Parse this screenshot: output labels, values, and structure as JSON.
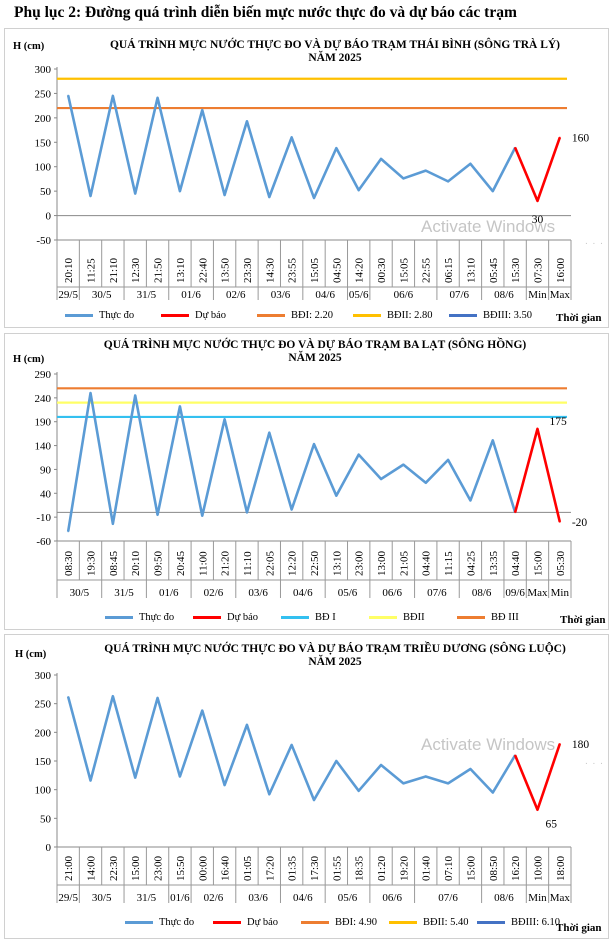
{
  "page_title": "Phụ lục 2: Đường quá trình diễn biến mực nước thực đo và dự báo các trạm",
  "watermark": "Activate Windows",
  "chart_data": [
    {
      "type": "line",
      "title_line1": "QUÁ TRÌNH MỰC NƯỚC THỰC ĐO VÀ DỰ BÁO TRẠM THÁI BÌNH (SÔNG TRÀ LÝ)",
      "title_line2": "NĂM 2025",
      "ylabel": "H (cm)",
      "xlabel": "Thời gian",
      "ylim": [
        -50,
        300
      ],
      "yticks": [
        -50,
        0,
        50,
        100,
        150,
        200,
        250,
        300
      ],
      "categories": [
        "20:10",
        "11:25",
        "21:10",
        "12:30",
        "21:50",
        "13:10",
        "22:40",
        "13:50",
        "23:30",
        "14:30",
        "23:55",
        "15:05",
        "04:50",
        "14:20",
        "00:30",
        "15:05",
        "22:55",
        "06:15",
        "13:10",
        "05:45",
        "15:30",
        "07:30",
        "16:00"
      ],
      "date_groups": [
        {
          "label": "29/5",
          "start": 0,
          "end": 0
        },
        {
          "label": "30/5",
          "start": 1,
          "end": 2
        },
        {
          "label": "31/5",
          "start": 3,
          "end": 4
        },
        {
          "label": "01/6",
          "start": 5,
          "end": 6
        },
        {
          "label": "02/6",
          "start": 7,
          "end": 8
        },
        {
          "label": "03/6",
          "start": 9,
          "end": 10
        },
        {
          "label": "04/6",
          "start": 11,
          "end": 12
        },
        {
          "label": "05/6",
          "start": 13,
          "end": 13
        },
        {
          "label": "06/6",
          "start": 14,
          "end": 16
        },
        {
          "label": "07/6",
          "start": 17,
          "end": 18
        },
        {
          "label": "08/6",
          "start": 19,
          "end": 20
        },
        {
          "label": "Min",
          "start": 21,
          "end": 21
        },
        {
          "label": "Max",
          "start": 22,
          "end": 22
        }
      ],
      "observed": [
        246,
        40,
        245,
        45,
        241,
        50,
        216,
        42,
        193,
        38,
        160,
        36,
        138,
        52,
        116,
        76,
        92,
        70,
        106,
        50,
        139
      ],
      "forecast": {
        "start_index": 20,
        "values": [
          139,
          30,
          160
        ]
      },
      "forecast_labels": [
        {
          "index": 21,
          "text": "30",
          "pos": "below"
        },
        {
          "index": 22,
          "text": "160",
          "pos": "right"
        }
      ],
      "alarms": [
        {
          "name": "BĐI: 2.20",
          "value": 220,
          "color": "#ed7d31",
          "drawn": true
        },
        {
          "name": "BĐII: 2.80",
          "value": 280,
          "color": "#ffc000",
          "drawn": true
        },
        {
          "name": "BĐIII: 3.50",
          "value": 350,
          "color": "#4472c4",
          "drawn": false
        }
      ],
      "legend": [
        {
          "label": "Thực đo",
          "color": "#5b9bd5"
        },
        {
          "label": "Dự báo",
          "color": "#ff0000"
        },
        {
          "label": "BĐI: 2.20",
          "color": "#ed7d31"
        },
        {
          "label": "BĐII: 2.80",
          "color": "#ffc000"
        },
        {
          "label": "BĐIII: 3.50",
          "color": "#4472c4"
        }
      ]
    },
    {
      "type": "line",
      "title_line1": "QUÁ TRÌNH MỰC NƯỚC THỰC ĐO VÀ DỰ BÁO TRẠM BA LẠT (SÔNG HỒNG)",
      "title_line2": "NĂM 2025",
      "ylabel": "H (cm)",
      "xlabel": "Thời gian",
      "ylim": [
        -60,
        290
      ],
      "yticks": [
        -60,
        -10,
        40,
        90,
        140,
        190,
        240,
        290
      ],
      "categories": [
        "08:30",
        "19:30",
        "08:45",
        "20:10",
        "09:50",
        "20:45",
        "11:00",
        "21:20",
        "11:10",
        "22:05",
        "12:20",
        "22:50",
        "13:10",
        "23:00",
        "13:00",
        "21:05",
        "04:40",
        "11:15",
        "04:25",
        "13:35",
        "04:40",
        "15:00",
        "05:30"
      ],
      "date_groups": [
        {
          "label": "30/5",
          "start": 0,
          "end": 1
        },
        {
          "label": "31/5",
          "start": 2,
          "end": 3
        },
        {
          "label": "01/6",
          "start": 4,
          "end": 5
        },
        {
          "label": "02/6",
          "start": 6,
          "end": 7
        },
        {
          "label": "03/6",
          "start": 8,
          "end": 9
        },
        {
          "label": "04/6",
          "start": 10,
          "end": 11
        },
        {
          "label": "05/6",
          "start": 12,
          "end": 13
        },
        {
          "label": "06/6",
          "start": 14,
          "end": 15
        },
        {
          "label": "07/6",
          "start": 16,
          "end": 17
        },
        {
          "label": "08/6",
          "start": 18,
          "end": 19
        },
        {
          "label": "09/6",
          "start": 20,
          "end": 20
        },
        {
          "label": "Max",
          "start": 21,
          "end": 21
        },
        {
          "label": "Min",
          "start": 22,
          "end": 22
        }
      ],
      "observed": [
        -40,
        250,
        -24,
        245,
        -5,
        222,
        -7,
        195,
        0,
        167,
        6,
        143,
        35,
        121,
        70,
        100,
        62,
        110,
        25,
        151,
        0
      ],
      "forecast": {
        "start_index": 20,
        "values": [
          0,
          175,
          -20
        ]
      },
      "forecast_labels": [
        {
          "index": 21,
          "text": "175",
          "pos": "right-up"
        },
        {
          "index": 22,
          "text": "-20",
          "pos": "right"
        }
      ],
      "alarms": [
        {
          "name": "BĐ I",
          "value": 200,
          "color": "#33c0f0",
          "drawn": true
        },
        {
          "name": "BĐII",
          "value": 230,
          "color": "#ffff66",
          "drawn": true
        },
        {
          "name": "BĐ III",
          "value": 260,
          "color": "#ed7d31",
          "drawn": true
        }
      ],
      "legend": [
        {
          "label": "Thực đo",
          "color": "#5b9bd5"
        },
        {
          "label": "Dự báo",
          "color": "#ff0000"
        },
        {
          "label": "BĐ I",
          "color": "#33c0f0"
        },
        {
          "label": "BĐII",
          "color": "#ffff66"
        },
        {
          "label": "BĐ III",
          "color": "#ed7d31"
        }
      ]
    },
    {
      "type": "line",
      "title_line1": "QUÁ TRÌNH MỰC NƯỚC THỰC ĐO VÀ DỰ BÁO TRẠM TRIỀU DƯƠNG  (SÔNG LUỘC)",
      "title_line2": "NĂM 2025",
      "ylabel": "H (cm)",
      "xlabel": "Thời gian",
      "ylim": [
        0,
        300
      ],
      "yticks": [
        0,
        50,
        100,
        150,
        200,
        250,
        300
      ],
      "ytick_labels": [
        "0",
        "50",
        "100",
        "150",
        "200",
        "250",
        "300"
      ],
      "ytick_top_label": "",
      "categories": [
        "21:00",
        "14:00",
        "22:30",
        "15:00",
        "23:00",
        "15:50",
        "00:00",
        "16:40",
        "01:05",
        "17:20",
        "01:35",
        "17:30",
        "01:55",
        "18:35",
        "01:20",
        "19:20",
        "01:40",
        "07:10",
        "15:00",
        "08:50",
        "16:20",
        "10:00",
        "18:00"
      ],
      "date_groups": [
        {
          "label": "29/5",
          "start": 0,
          "end": 0
        },
        {
          "label": "30/5",
          "start": 1,
          "end": 2
        },
        {
          "label": "31/5",
          "start": 3,
          "end": 4
        },
        {
          "label": "01/6",
          "start": 5,
          "end": 5
        },
        {
          "label": "02/6",
          "start": 6,
          "end": 7
        },
        {
          "label": "03/6",
          "start": 8,
          "end": 9
        },
        {
          "label": "04/6",
          "start": 10,
          "end": 11
        },
        {
          "label": "05/6",
          "start": 12,
          "end": 13
        },
        {
          "label": "06/6",
          "start": 14,
          "end": 15
        },
        {
          "label": "07/6",
          "start": 16,
          "end": 18
        },
        {
          "label": "08/6",
          "start": 19,
          "end": 20
        },
        {
          "label": "Min",
          "start": 21,
          "end": 21
        },
        {
          "label": "Max",
          "start": 22,
          "end": 22
        }
      ],
      "observed": [
        262,
        116,
        263,
        121,
        260,
        123,
        238,
        108,
        213,
        92,
        178,
        82,
        150,
        98,
        143,
        111,
        123,
        111,
        136,
        95,
        160
      ],
      "forecast": {
        "start_index": 20,
        "values": [
          160,
          65,
          180
        ]
      },
      "forecast_labels": [
        {
          "index": 21,
          "text": "65",
          "pos": "right-below"
        },
        {
          "index": 22,
          "text": "180",
          "pos": "right"
        }
      ],
      "alarms": [
        {
          "name": "BĐI: 4.90",
          "value": 490,
          "color": "#ed7d31",
          "drawn": false
        },
        {
          "name": "BĐII: 5.40",
          "value": 540,
          "color": "#ffc000",
          "drawn": false
        },
        {
          "name": "BĐIII: 6.10",
          "value": 610,
          "color": "#4472c4",
          "drawn": false
        }
      ],
      "legend": [
        {
          "label": "Thực đo",
          "color": "#5b9bd5"
        },
        {
          "label": "Dự báo",
          "color": "#ff0000"
        },
        {
          "label": "BĐI: 4.90",
          "color": "#ed7d31"
        },
        {
          "label": "BĐII: 5.40",
          "color": "#ffc000"
        },
        {
          "label": "BĐIII: 6.10",
          "color": "#4472c4"
        }
      ]
    }
  ]
}
